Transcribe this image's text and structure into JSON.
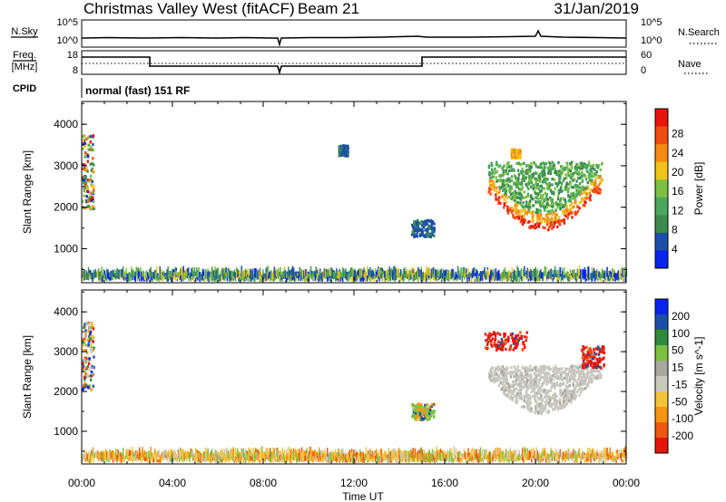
{
  "header": {
    "title": "Christmas Valley West (fitACF)",
    "beam": "Beam 21",
    "date": "31/Jan/2019"
  },
  "panels": {
    "nsky": {
      "left_label": "N.Sky",
      "right_label": "N.Search",
      "ticks_left": [
        "10^5",
        "10^0"
      ],
      "ticks_right": [
        "10^5",
        "10^0"
      ]
    },
    "freq": {
      "left_label_1": "Freq.",
      "left_label_2": "[MHz]",
      "right_label": "Nave",
      "ticks_left": [
        "18",
        "8"
      ],
      "ticks_right": [
        "60",
        "0"
      ]
    },
    "cpid": {
      "label": "CPID",
      "value": "normal (fast) 151 RF"
    }
  },
  "colors": {
    "power": [
      "#0a22ee",
      "#1c4fa8",
      "#3d8a4f",
      "#49a85e",
      "#7cc144",
      "#f0c419",
      "#f58b12",
      "#f04d10",
      "#e8150c"
    ],
    "velocity": [
      "#e8150c",
      "#ee5a10",
      "#f59512",
      "#f3c43b",
      "#c8c8c0",
      "#a8a8a0",
      "#7cc144",
      "#2f8a3e",
      "#1c4fa8",
      "#0a22ee"
    ]
  },
  "chart_data": [
    {
      "type": "heatmap",
      "name": "power",
      "ylabel": "Slant Range [km]",
      "xlabel": "",
      "x_ticks": [
        "00:00",
        "04:00",
        "08:00",
        "12:00",
        "16:00",
        "20:00",
        "00:00"
      ],
      "y_ticks": [
        "1000",
        "2000",
        "3000",
        "4000"
      ],
      "ylim": [
        180,
        4550
      ],
      "colorbar_label": "Power [dB]",
      "colorbar_ticks": [
        "4",
        "8",
        "12",
        "16",
        "20",
        "24",
        "28"
      ],
      "regions": [
        {
          "t0": 17.9,
          "t1": 22.9,
          "r0": 1250,
          "r1": 3050,
          "value": "arc"
        },
        {
          "t0": 18.9,
          "t1": 19.3,
          "r0": 3150,
          "r1": 3350,
          "value": "mid"
        },
        {
          "t0": 14.5,
          "t1": 15.5,
          "r0": 1250,
          "r1": 1650,
          "value": "low"
        },
        {
          "t0": 0.0,
          "t1": 0.5,
          "r0": 1900,
          "r1": 3700,
          "value": "mixed"
        },
        {
          "t0": 11.3,
          "t1": 11.7,
          "r0": 3200,
          "r1": 3450,
          "value": "low"
        }
      ]
    },
    {
      "type": "heatmap",
      "name": "velocity",
      "ylabel": "Slant Range [km]",
      "xlabel": "Time UT",
      "x_ticks": [
        "00:00",
        "04:00",
        "08:00",
        "12:00",
        "16:00",
        "20:00",
        "00:00"
      ],
      "y_ticks": [
        "1000",
        "2000",
        "3000",
        "4000"
      ],
      "ylim": [
        180,
        4550
      ],
      "colorbar_label": "Velocity [m s^-1]",
      "colorbar_ticks": [
        "200",
        "100",
        "50",
        "15",
        "-15",
        "-50",
        "-100",
        "-200"
      ],
      "regions": [
        {
          "t0": 17.9,
          "t1": 22.9,
          "r0": 1250,
          "r1": 2600,
          "value": "grey"
        },
        {
          "t0": 17.7,
          "t1": 19.6,
          "r0": 3000,
          "r1": 3450,
          "value": "red"
        },
        {
          "t0": 22.0,
          "t1": 23.0,
          "r0": 2550,
          "r1": 3100,
          "value": "red"
        },
        {
          "t0": 14.5,
          "t1": 15.5,
          "r0": 1250,
          "r1": 1650,
          "value": "green"
        },
        {
          "t0": 0.0,
          "t1": 0.5,
          "r0": 2000,
          "r1": 3700,
          "value": "mixed"
        }
      ]
    }
  ]
}
